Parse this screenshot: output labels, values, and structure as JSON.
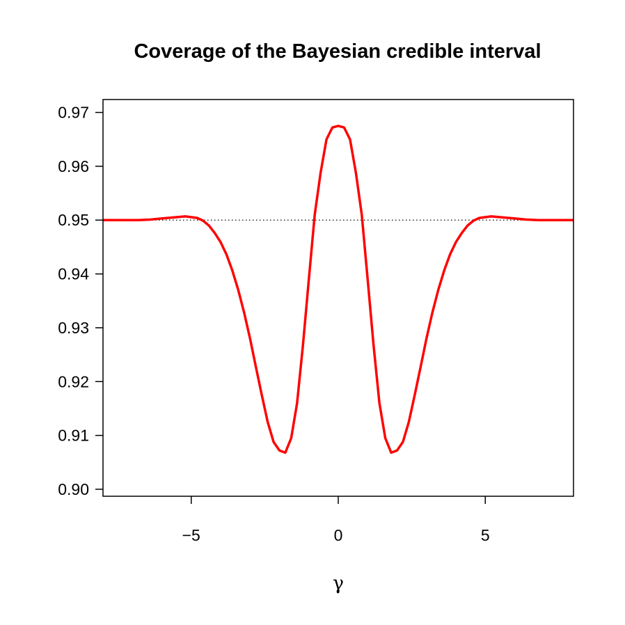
{
  "chart_data": {
    "type": "line",
    "title": "Coverage of the Bayesian credible interval",
    "xlabel": "γ",
    "ylabel": "",
    "xlim": [
      -8,
      8
    ],
    "ylim": [
      0.8987,
      0.9724
    ],
    "x_ticks": [
      -5,
      0,
      5
    ],
    "x_tick_labels": [
      "−5",
      "0",
      "5"
    ],
    "y_ticks": [
      0.9,
      0.91,
      0.92,
      0.93,
      0.94,
      0.95,
      0.96,
      0.97
    ],
    "y_tick_labels": [
      "0.90",
      "0.91",
      "0.92",
      "0.93",
      "0.94",
      "0.95",
      "0.96",
      "0.97"
    ],
    "grid": false,
    "reference_line": {
      "y": 0.95,
      "style": "dotted",
      "color": "#000000"
    },
    "series": [
      {
        "color": "#ff0000",
        "x": [
          -8,
          -7.6,
          -7.2,
          -6.8,
          -6.4,
          -6.0,
          -5.6,
          -5.2,
          -4.8,
          -4.6,
          -4.4,
          -4.2,
          -4.0,
          -3.8,
          -3.6,
          -3.4,
          -3.2,
          -3.0,
          -2.8,
          -2.6,
          -2.4,
          -2.2,
          -2.0,
          -1.8,
          -1.6,
          -1.4,
          -1.2,
          -1.0,
          -0.8,
          -0.6,
          -0.4,
          -0.2,
          0,
          0.2,
          0.4,
          0.6,
          0.8,
          1.0,
          1.2,
          1.4,
          1.6,
          1.8,
          2.0,
          2.2,
          2.4,
          2.6,
          2.8,
          3.0,
          3.2,
          3.4,
          3.6,
          3.8,
          4.0,
          4.2,
          4.4,
          4.6,
          4.8,
          5.2,
          5.6,
          6.0,
          6.4,
          6.8,
          7.2,
          7.6,
          8
        ],
        "values": [
          0.95,
          0.95,
          0.95,
          0.95,
          0.9501,
          0.9503,
          0.9505,
          0.9507,
          0.9504,
          0.9499,
          0.949,
          0.9476,
          0.9459,
          0.9436,
          0.9406,
          0.937,
          0.9328,
          0.928,
          0.9227,
          0.9175,
          0.9125,
          0.9088,
          0.9072,
          0.9068,
          0.9095,
          0.916,
          0.9268,
          0.939,
          0.951,
          0.9588,
          0.965,
          0.9672,
          0.9675,
          0.9672,
          0.965,
          0.9588,
          0.951,
          0.939,
          0.9268,
          0.916,
          0.9095,
          0.9068,
          0.9072,
          0.9088,
          0.9125,
          0.9175,
          0.9227,
          0.928,
          0.9328,
          0.937,
          0.9406,
          0.9436,
          0.9459,
          0.9476,
          0.949,
          0.9499,
          0.9504,
          0.9507,
          0.9505,
          0.9503,
          0.9501,
          0.95,
          0.95,
          0.95,
          0.95
        ]
      }
    ]
  }
}
